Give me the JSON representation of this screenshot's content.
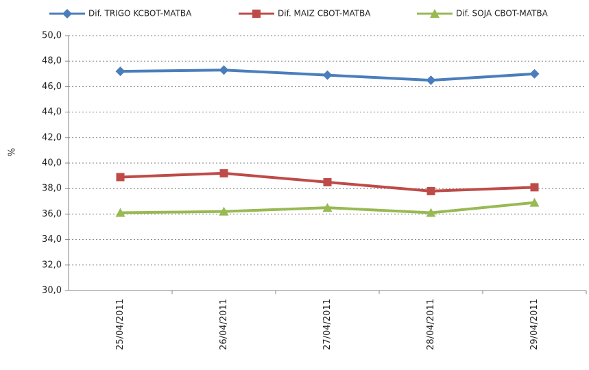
{
  "chart_data": {
    "type": "line",
    "y_label": "%",
    "categories": [
      "25/04/2011",
      "26/04/2011",
      "27/04/2011",
      "28/04/2011",
      "29/04/2011"
    ],
    "series": [
      {
        "name": "Dif. TRIGO KCBOT-MATBA",
        "color": "#4a7ebb",
        "marker": "diamond",
        "values": [
          47.2,
          47.3,
          46.9,
          46.5,
          47.0
        ]
      },
      {
        "name": "Dif. MAIZ CBOT-MATBA",
        "color": "#be4b48",
        "marker": "square",
        "values": [
          38.9,
          39.2,
          38.5,
          37.8,
          38.1
        ]
      },
      {
        "name": "Dif. SOJA CBOT-MATBA",
        "color": "#98b954",
        "marker": "triangle",
        "values": [
          36.1,
          36.2,
          36.5,
          36.1,
          36.9
        ]
      }
    ],
    "ylim": [
      30,
      50
    ],
    "yticks": [
      {
        "value": 30,
        "label": "30,0"
      },
      {
        "value": 32,
        "label": "32,0"
      },
      {
        "value": 34,
        "label": "34,0"
      },
      {
        "value": 36,
        "label": "36,0"
      },
      {
        "value": 38,
        "label": "38,0"
      },
      {
        "value": 40,
        "label": "40,0"
      },
      {
        "value": 42,
        "label": "42,0"
      },
      {
        "value": 44,
        "label": "44,0"
      },
      {
        "value": 46,
        "label": "46,0"
      },
      {
        "value": 48,
        "label": "48,0"
      },
      {
        "value": 50,
        "label": "50,0"
      }
    ],
    "grid": true,
    "legend": "top"
  }
}
